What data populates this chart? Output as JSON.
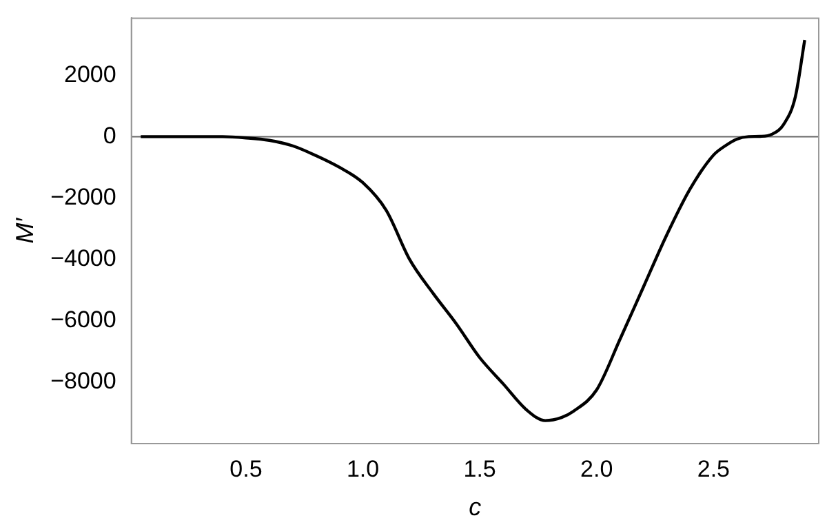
{
  "chart_data": {
    "type": "line",
    "xlabel": "c",
    "ylabel": "M′",
    "xlim": [
      0.01,
      2.95
    ],
    "xticks": [
      0.5,
      {
        "value": 1,
        "label": "1.0"
      },
      1.5,
      {
        "value": 2,
        "label": "2.0"
      },
      2.5
    ],
    "ylim": [
      -10000,
      3860
    ],
    "yticks": [
      -8000,
      -6000,
      -4000,
      -2000,
      0,
      2000
    ],
    "grid": false,
    "legend": false,
    "marker": "none",
    "line_style": "solid",
    "ref_lines": [
      {
        "axis": "y",
        "value": 0,
        "color": "#666666"
      }
    ],
    "series": [
      {
        "color": "#000000",
        "x": [
          0.05,
          0.2,
          0.3,
          0.4,
          0.5,
          0.6,
          0.7,
          0.8,
          0.9,
          1.0,
          1.1,
          1.2,
          1.3,
          1.4,
          1.5,
          1.6,
          1.7,
          1.78,
          1.85,
          1.9,
          2.0,
          2.1,
          2.2,
          2.3,
          2.4,
          2.5,
          2.55,
          2.6,
          2.65,
          2.7,
          2.75,
          2.8,
          2.85,
          2.89
        ],
        "values": [
          0,
          0,
          0,
          0,
          -40,
          -120,
          -300,
          -620,
          -1000,
          -1500,
          -2400,
          -4000,
          -5100,
          -6100,
          -7200,
          -8050,
          -8900,
          -9250,
          -9150,
          -8950,
          -8250,
          -6600,
          -4900,
          -3200,
          -1700,
          -600,
          -300,
          -80,
          0,
          10,
          80,
          400,
          1300,
          3150
        ]
      }
    ]
  }
}
